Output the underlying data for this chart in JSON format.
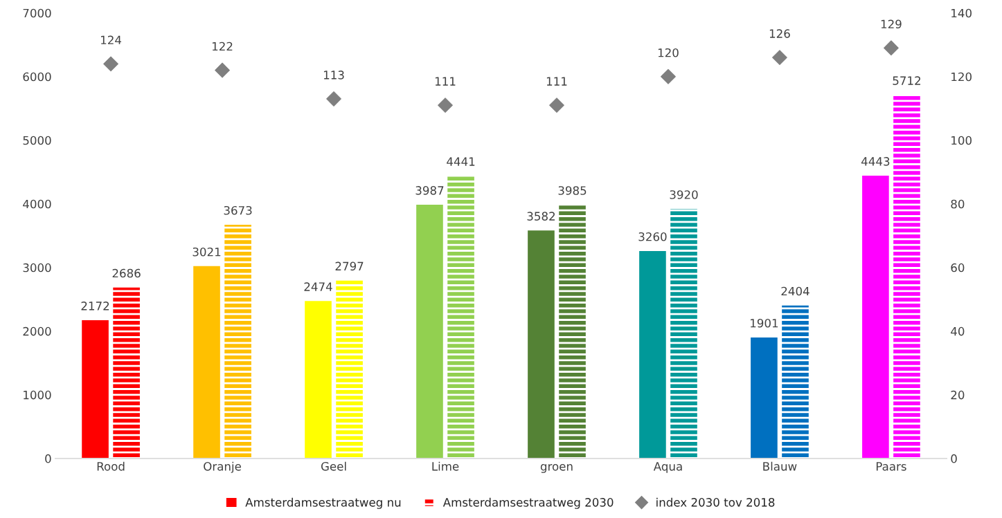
{
  "chart_data": {
    "type": "bar",
    "categories": [
      "Rood",
      "Oranje",
      "Geel",
      "Lime",
      "groen",
      "Aqua",
      "Blauw",
      "Paars"
    ],
    "series": [
      {
        "name": "Amsterdamsestraatweg nu",
        "colors": [
          "#ff0000",
          "#ffc000",
          "#ffff00",
          "#92d050",
          "#548235",
          "#009999",
          "#0070c0",
          "#ff00ff"
        ],
        "values": [
          2172,
          3021,
          2474,
          3987,
          3582,
          3260,
          1901,
          4443
        ]
      },
      {
        "name": "Amsterdamsestraatweg 2030",
        "colors": [
          "#ff0000",
          "#ffc000",
          "#ffff00",
          "#92d050",
          "#548235",
          "#009999",
          "#0070c0",
          "#ff00ff"
        ],
        "values": [
          2686,
          3673,
          2797,
          4441,
          3985,
          3920,
          2404,
          5712
        ]
      },
      {
        "name": "index 2030 tov 2018",
        "type": "scatter",
        "axis": "y2",
        "color": "#7f7f7f",
        "marker": "diamond",
        "values": [
          124,
          122,
          113,
          111,
          111,
          120,
          126,
          129
        ]
      }
    ],
    "ylim": [
      0,
      7000
    ],
    "yticks": [
      0,
      1000,
      2000,
      3000,
      4000,
      5000,
      6000,
      7000
    ],
    "y2lim": [
      0,
      140
    ],
    "y2ticks": [
      0,
      20,
      40,
      60,
      80,
      100,
      120,
      140
    ],
    "data_labels": true,
    "legend": "bottom",
    "grid": false
  }
}
